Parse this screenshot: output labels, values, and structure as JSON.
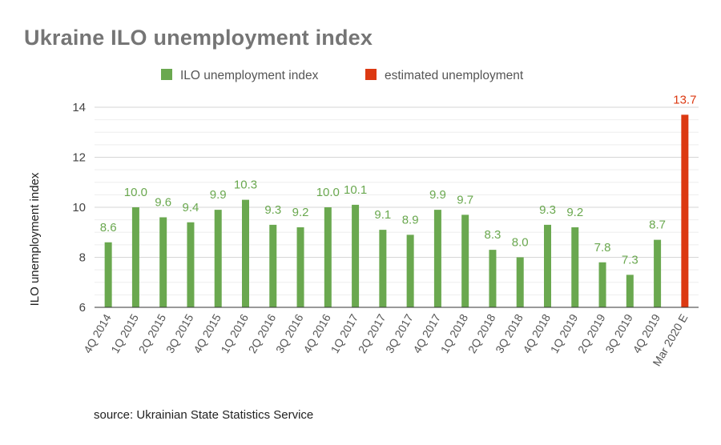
{
  "chart_data": {
    "type": "bar",
    "title": "Ukraine ILO unemployment index",
    "ylabel": "ILO unemployment index",
    "xlabel": "",
    "ylim": [
      6,
      14
    ],
    "yticks": [
      6,
      8,
      10,
      12,
      14
    ],
    "grid": true,
    "legend_position": "top",
    "categories": [
      "4Q 2014",
      "1Q 2015",
      "2Q 2015",
      "3Q 2015",
      "4Q 2015",
      "1Q 2016",
      "2Q 2016",
      "3Q 2016",
      "4Q 2016",
      "1Q 2017",
      "2Q 2017",
      "3Q 2017",
      "4Q 2017",
      "1Q 2018",
      "2Q 2018",
      "3Q 2018",
      "4Q 2018",
      "1Q 2019",
      "2Q 2019",
      "3Q 2019",
      "4Q 2019",
      "Mar 2020 E"
    ],
    "series": [
      {
        "name": "ILO unemployment index",
        "color": "#6aa84f",
        "values": [
          8.6,
          10.0,
          9.6,
          9.4,
          9.9,
          10.3,
          9.3,
          9.2,
          10.0,
          10.1,
          9.1,
          8.9,
          9.9,
          9.7,
          8.3,
          8.0,
          9.3,
          9.2,
          7.8,
          7.3,
          8.7,
          null
        ],
        "labels": [
          "8.6",
          "10.0",
          "9.6",
          "9.4",
          "9.9",
          "10.3",
          "9.3",
          "9.2",
          "10.0",
          "10.1",
          "9.1",
          "8.9",
          "9.9",
          "9.7",
          "8.3",
          "8.0",
          "9.3",
          "9.2",
          "7.8",
          "7.3",
          "8.7",
          ""
        ]
      },
      {
        "name": "estimated unemployment",
        "color": "#dc3912",
        "values": [
          null,
          null,
          null,
          null,
          null,
          null,
          null,
          null,
          null,
          null,
          null,
          null,
          null,
          null,
          null,
          null,
          null,
          null,
          null,
          null,
          null,
          13.7
        ],
        "labels": [
          "",
          "",
          "",
          "",
          "",
          "",
          "",
          "",
          "",
          "",
          "",
          "",
          "",
          "",
          "",
          "",
          "",
          "",
          "",
          "",
          "",
          "13.7"
        ]
      }
    ],
    "source": "source: Ukrainian State Statistics Service"
  },
  "colors": {
    "title": "#757575",
    "grid": "#dddddd",
    "axis": "#333333",
    "green": "#6aa84f",
    "red": "#dc3912"
  }
}
